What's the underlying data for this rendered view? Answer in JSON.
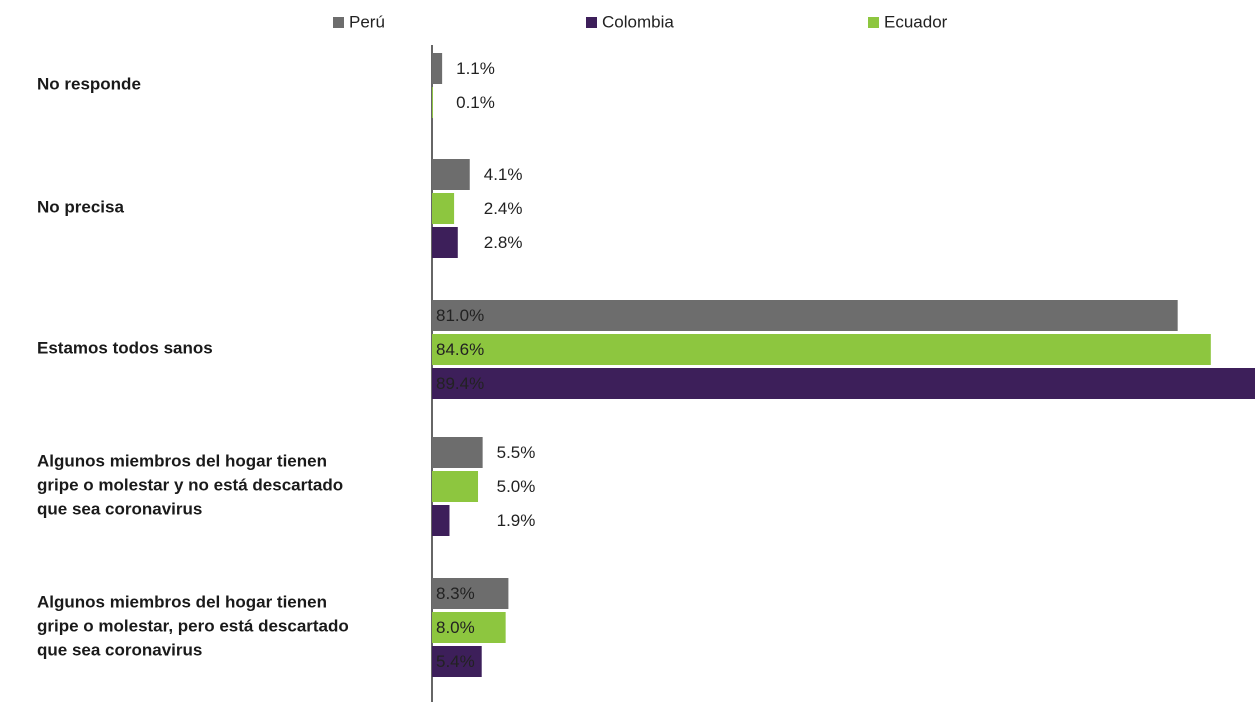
{
  "chart_data": {
    "type": "bar",
    "orientation": "horizontal",
    "categories": [
      "No responde",
      "No precisa",
      "Estamos todos sanos",
      "Algunos miembros del hogar tienen gripe o molestar y no está descartado que sea coronavirus",
      "Algunos miembros del hogar tienen gripe o molestar, pero está descartado que sea coronavirus"
    ],
    "series": [
      {
        "name": "Perú",
        "color": "#6d6d6d",
        "values": [
          1.1,
          4.1,
          81.0,
          5.5,
          8.3
        ],
        "value_labels": [
          "1.1%",
          "4.1%",
          "81.0%",
          "5.5%",
          "8.3%"
        ]
      },
      {
        "name": "Colombia",
        "color": "#3d1f5a",
        "values": [
          null,
          2.8,
          89.4,
          1.9,
          5.4
        ],
        "value_labels": [
          null,
          "2.8%",
          "89.4%",
          "1.9%",
          "5.4%"
        ]
      },
      {
        "name": "Ecuador",
        "color": "#8dc63f",
        "values": [
          0.1,
          2.4,
          84.6,
          5.0,
          8.0
        ],
        "value_labels": [
          "0.1%",
          "2.4%",
          "84.6%",
          "5.0%",
          "8.0%"
        ]
      }
    ],
    "xlim": [
      0,
      89.4
    ],
    "legend": "top"
  }
}
